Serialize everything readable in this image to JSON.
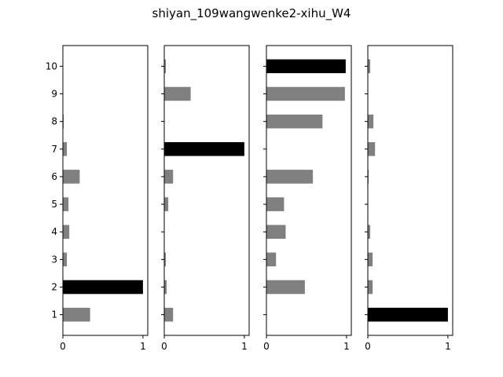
{
  "title": "shiyan_109wangwenke2-xihu_W4",
  "chart_data": {
    "type": "bar",
    "orientation": "horizontal",
    "categories": [
      "1",
      "2",
      "3",
      "4",
      "5",
      "6",
      "7",
      "8",
      "9",
      "10"
    ],
    "xlim": [
      0,
      1.06
    ],
    "x_ticks": [
      0,
      1
    ],
    "x_tick_labels": [
      "0",
      "1"
    ],
    "y_tick_labels": [
      "1",
      "2",
      "3",
      "4",
      "5",
      "6",
      "7",
      "8",
      "9",
      "10"
    ],
    "colors": {
      "max": "#000000",
      "other": "#808080"
    },
    "panels": [
      {
        "values": [
          0.34,
          1.0,
          0.05,
          0.08,
          0.07,
          0.21,
          0.05,
          0.01,
          0.0,
          0.0
        ]
      },
      {
        "values": [
          0.11,
          0.03,
          0.02,
          0.0,
          0.05,
          0.11,
          1.0,
          0.0,
          0.33,
          0.02
        ]
      },
      {
        "values": [
          0.0,
          0.48,
          0.12,
          0.24,
          0.22,
          0.58,
          0.0,
          0.7,
          0.98,
          0.99
        ]
      },
      {
        "values": [
          1.0,
          0.06,
          0.06,
          0.03,
          0.0,
          0.01,
          0.09,
          0.07,
          0.0,
          0.03
        ]
      }
    ]
  }
}
